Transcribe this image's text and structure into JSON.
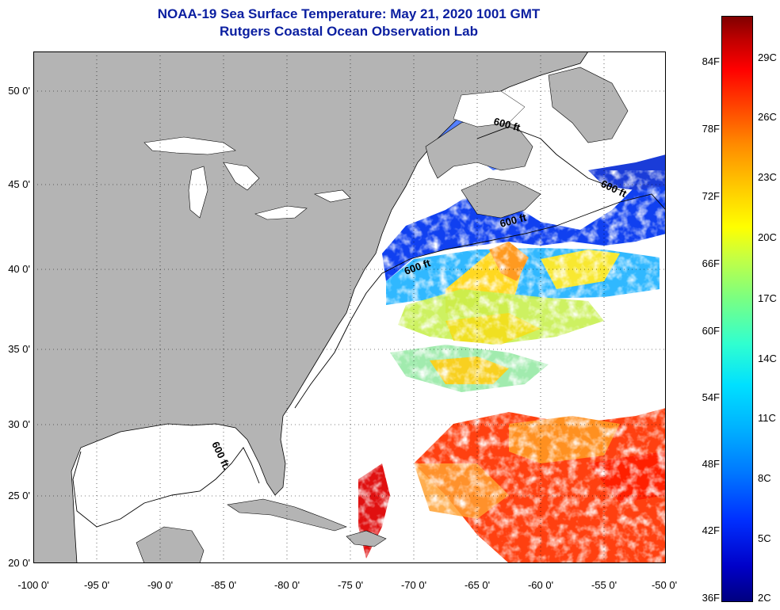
{
  "title": {
    "line1": "NOAA-19 Sea Surface Temperature:  May 21, 2020 1001 GMT",
    "line2": "Rutgers Coastal Ocean Observation Lab"
  },
  "map": {
    "lon_range": [
      -100,
      -50
    ],
    "lat_range": [
      20,
      52.5
    ],
    "lat_labels": [
      "50 0'",
      "45 0'",
      "40 0'",
      "35 0'",
      "30 0'",
      "25 0'",
      "20 0'"
    ],
    "lon_labels": [
      "-100 0'",
      "-95 0'",
      "-90 0'",
      "-85 0'",
      "-80 0'",
      "-75 0'",
      "-70 0'",
      "-65 0'",
      "-60 0'",
      "-55 0'",
      "-50 0'"
    ],
    "contour_label": "600 ft.",
    "contour_labels_ne": [
      "600 ft",
      "600 ft",
      "600 ft",
      "600 ft"
    ],
    "land_color": "#b4b4b4",
    "water_color": "#ffffff"
  },
  "colorbar": {
    "f_labels": [
      "84F",
      "78F",
      "72F",
      "66F",
      "60F",
      "54F",
      "48F",
      "42F",
      "36F"
    ],
    "c_labels": [
      "29C",
      "26C",
      "23C",
      "20C",
      "17C",
      "14C",
      "11C",
      "8C",
      "5C",
      "2C"
    ]
  }
}
